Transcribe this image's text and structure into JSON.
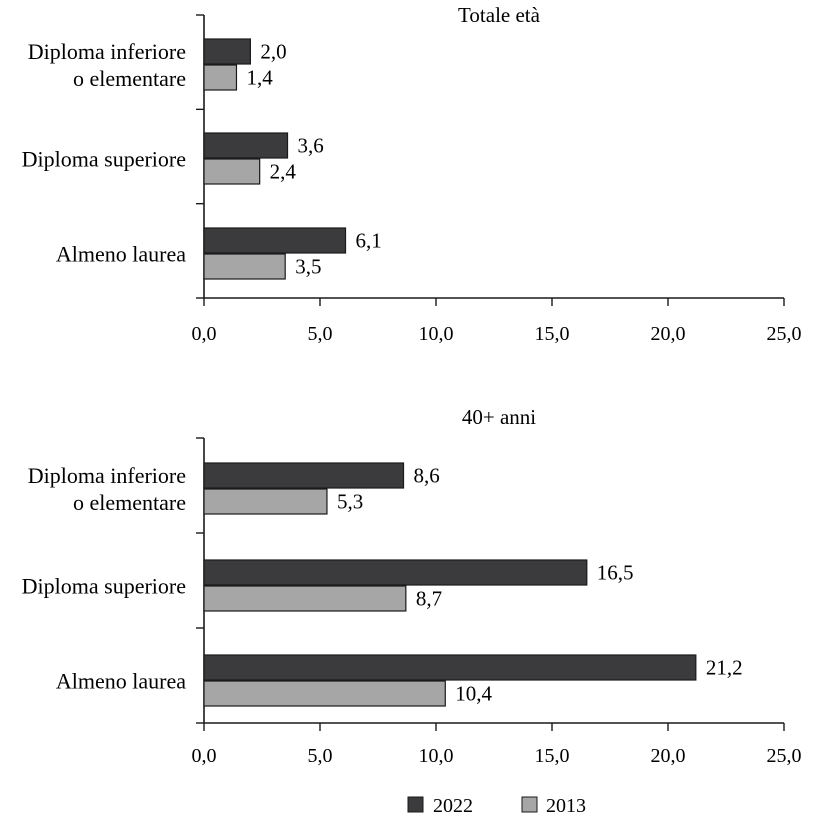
{
  "chart_data": [
    {
      "type": "bar",
      "orientation": "horizontal",
      "title": "Totale età",
      "categories": [
        [
          "Diploma inferiore",
          "o elementare"
        ],
        [
          "Diploma superiore"
        ],
        [
          "Almeno laurea"
        ]
      ],
      "series": [
        {
          "name": "2022",
          "values": [
            2.0,
            3.6,
            6.1
          ],
          "labels": [
            "2,0",
            "3,6",
            "6,1"
          ]
        },
        {
          "name": "2013",
          "values": [
            1.4,
            2.4,
            3.5
          ],
          "labels": [
            "1,4",
            "2,4",
            "3,5"
          ]
        }
      ],
      "xlim": [
        0,
        25
      ],
      "xticks": [
        "0,0",
        "5,0",
        "10,0",
        "15,0",
        "20,0",
        "25,0"
      ],
      "grid": false
    },
    {
      "type": "bar",
      "orientation": "horizontal",
      "title": "40+ anni",
      "categories": [
        [
          "Diploma inferiore",
          "o elementare"
        ],
        [
          "Diploma superiore"
        ],
        [
          "Almeno laurea"
        ]
      ],
      "series": [
        {
          "name": "2022",
          "values": [
            8.6,
            16.5,
            21.2
          ],
          "labels": [
            "8,6",
            "16,5",
            "21,2"
          ]
        },
        {
          "name": "2013",
          "values": [
            5.3,
            8.7,
            10.4
          ],
          "labels": [
            "5,3",
            "8,7",
            "10,4"
          ]
        }
      ],
      "xlim": [
        0,
        25
      ],
      "xticks": [
        "0,0",
        "5,0",
        "10,0",
        "15,0",
        "20,0",
        "25,0"
      ],
      "grid": false
    }
  ],
  "legend": {
    "placement": "bottom",
    "items": [
      {
        "label": "2022",
        "color": "#3b3b3d"
      },
      {
        "label": "2013",
        "color": "#a6a6a6"
      }
    ]
  },
  "colors": {
    "2022": "#3b3b3d",
    "2013": "#a6a6a6",
    "stroke": "#1a1a1a",
    "axis": "#1a1a1a"
  }
}
